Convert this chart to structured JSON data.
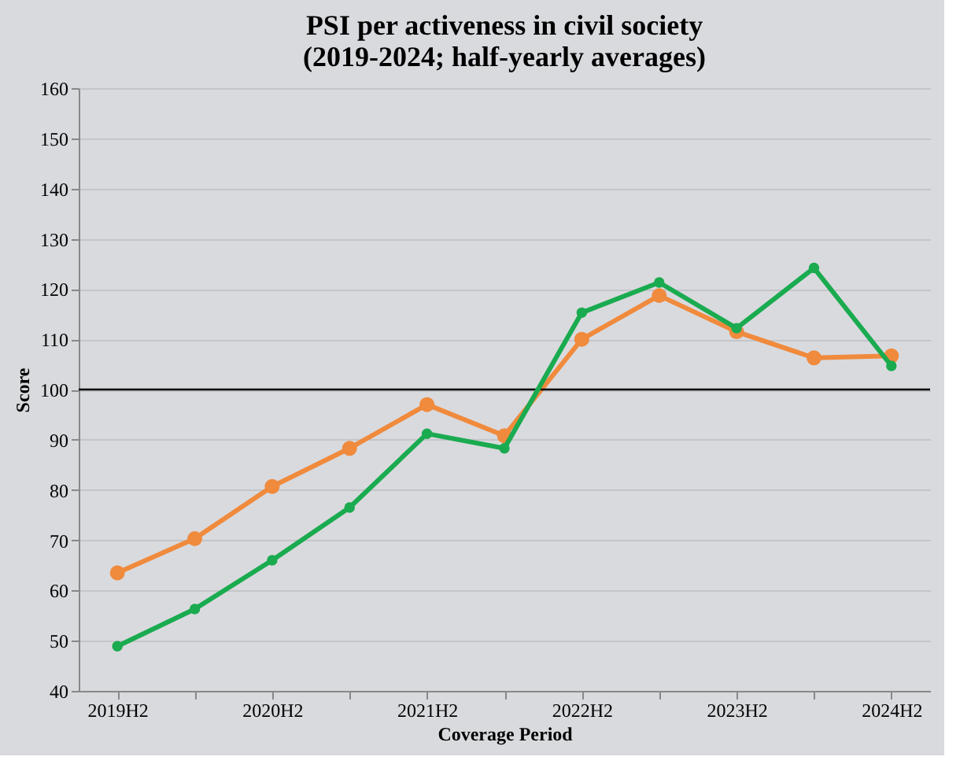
{
  "chart_data": {
    "type": "line",
    "title": [
      "PSI per activeness in civil society",
      "(2019-2024; half-yearly averages)"
    ],
    "xlabel": "Coverage Period",
    "ylabel": "Score",
    "categories": [
      "2019H2",
      null,
      "2020H2",
      null,
      "2021H2",
      null,
      "2022H2",
      null,
      "2023H2",
      null,
      "2024H2"
    ],
    "series": [
      {
        "color": "#f08a3c",
        "values": [
          63.5,
          70.3,
          80.7,
          88.3,
          97,
          90.8,
          110,
          118.7,
          111.5,
          106.3,
          106.7
        ]
      },
      {
        "color": "#1aab50",
        "values": [
          48.9,
          56.3,
          66,
          76.5,
          91.2,
          88.3,
          115.3,
          121.3,
          112.2,
          124.2,
          104.7
        ]
      }
    ],
    "ylim": [
      40,
      160
    ],
    "yticks": [
      40,
      50,
      60,
      70,
      80,
      90,
      100,
      110,
      120,
      130,
      140,
      150,
      160
    ],
    "ref_lines": [
      {
        "axis": "y",
        "value": 100,
        "color": "#000000"
      }
    ],
    "grid": "y",
    "marker": "circle",
    "line_style": "solid"
  }
}
